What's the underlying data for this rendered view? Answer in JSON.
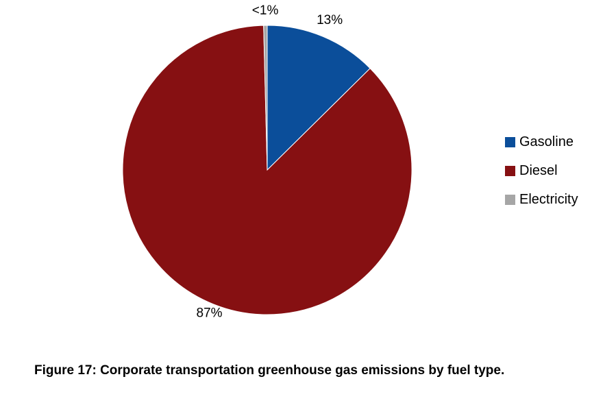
{
  "chart_data": {
    "type": "pie",
    "categories": [
      "Gasoline",
      "Diesel",
      "Electricity"
    ],
    "values": [
      12.6,
      87.0,
      0.4
    ],
    "data_labels": [
      "13%",
      "87%",
      "<1%"
    ],
    "colors": [
      "#0b4e9a",
      "#861012",
      "#a6a6a6"
    ],
    "legend_position": "right",
    "start_angle_deg": 0,
    "direction": "clockwise"
  },
  "caption": "Figure 17: Corporate transportation greenhouse gas emissions by fuel type."
}
